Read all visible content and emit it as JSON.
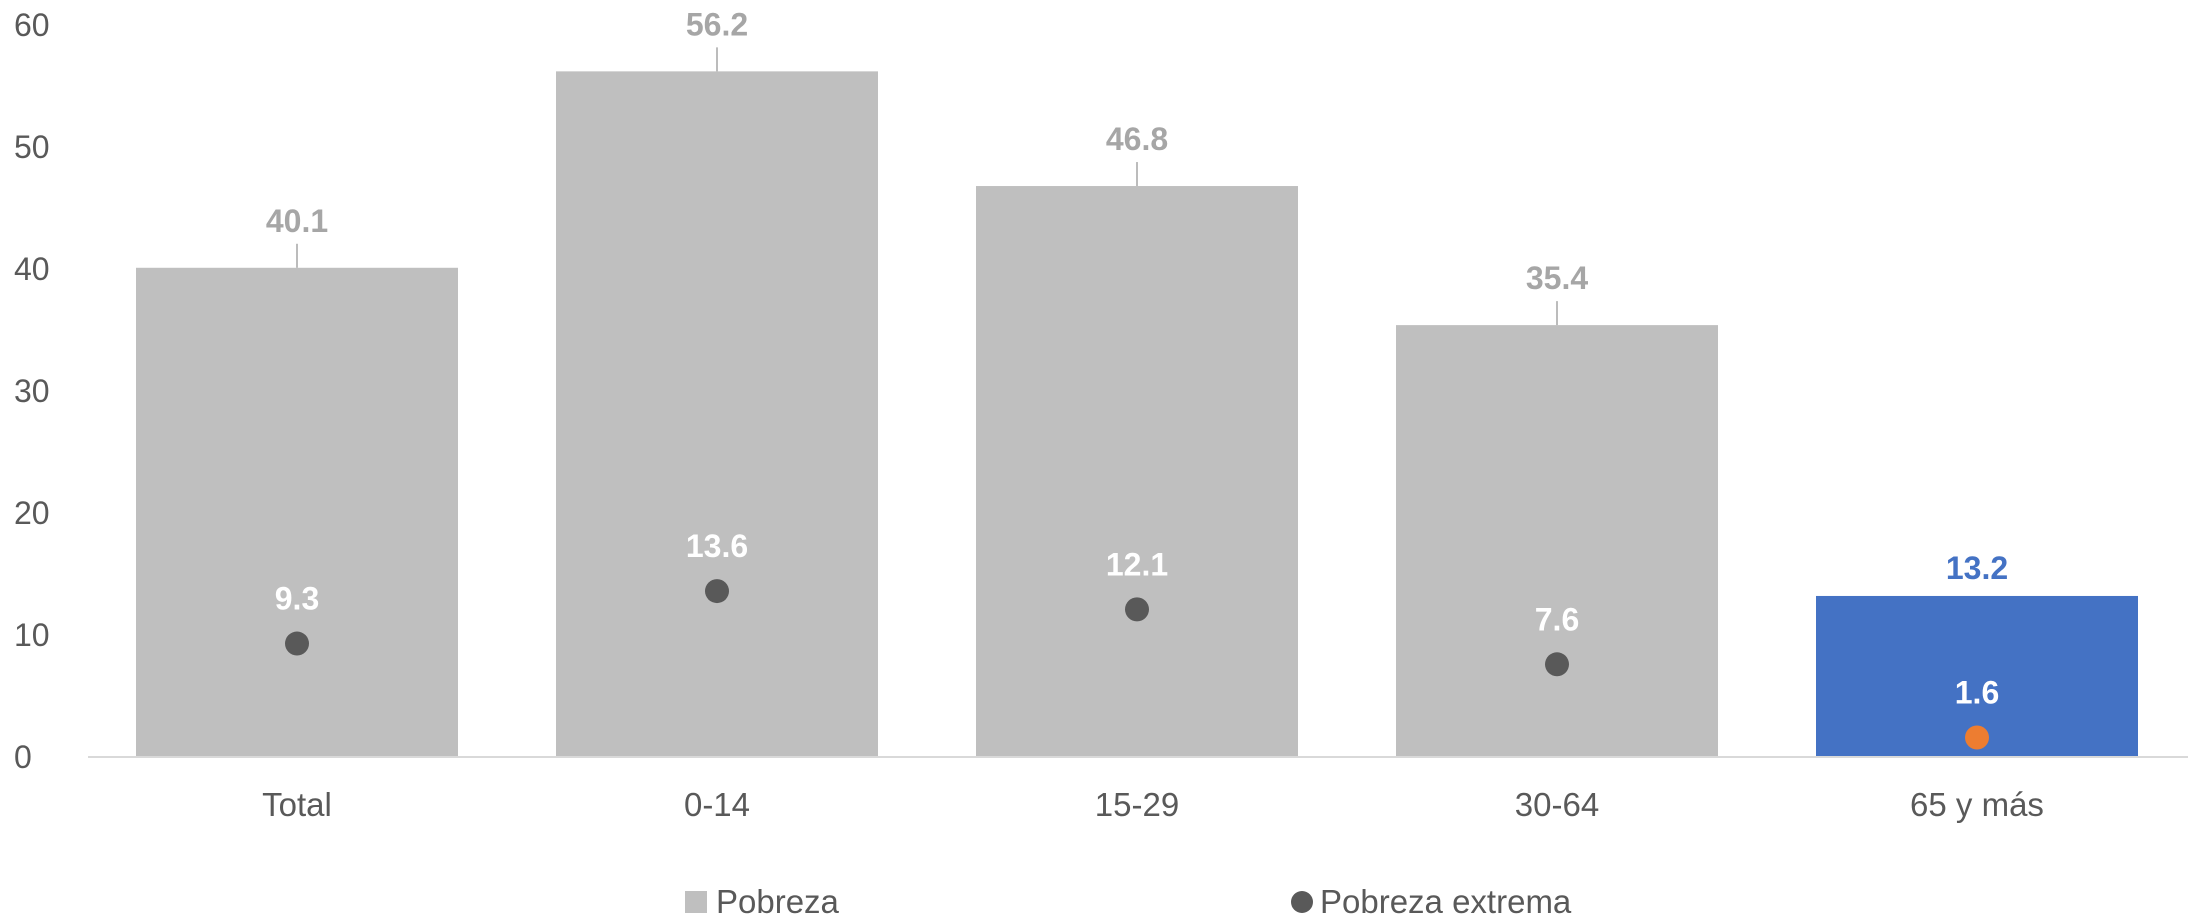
{
  "chart_data": {
    "type": "bar",
    "title": "",
    "xlabel": "",
    "ylabel": "",
    "ylim": [
      0,
      60
    ],
    "yticks": [
      0,
      10,
      20,
      30,
      40,
      50,
      60
    ],
    "grid": false,
    "legend_position": "bottom",
    "categories": [
      "Total",
      "0-14",
      "15-29",
      "30-64",
      "65 y más"
    ],
    "series": [
      {
        "name": "Pobreza",
        "kind": "bar",
        "values": [
          40.1,
          56.2,
          46.8,
          35.4,
          13.2
        ],
        "labels": [
          "40.1",
          "56.2",
          "46.8",
          "35.4",
          "13.2"
        ],
        "color": "#bfbfbf",
        "highlight_index": 4,
        "highlight_color": "#4472c4"
      },
      {
        "name": "Pobreza extrema",
        "kind": "marker",
        "values": [
          9.3,
          13.6,
          12.1,
          7.6,
          1.6
        ],
        "labels": [
          "9.3",
          "13.6",
          "12.1",
          "7.6",
          "1.6"
        ],
        "color": "#595959",
        "highlight_index": 4,
        "highlight_color": "#ed7d31"
      }
    ]
  },
  "colors": {
    "bar_label": "#a6a6a6",
    "bar_label_highlight": "#4472c4",
    "axis_text": "#595959",
    "axis_line": "#d9d9d9"
  }
}
